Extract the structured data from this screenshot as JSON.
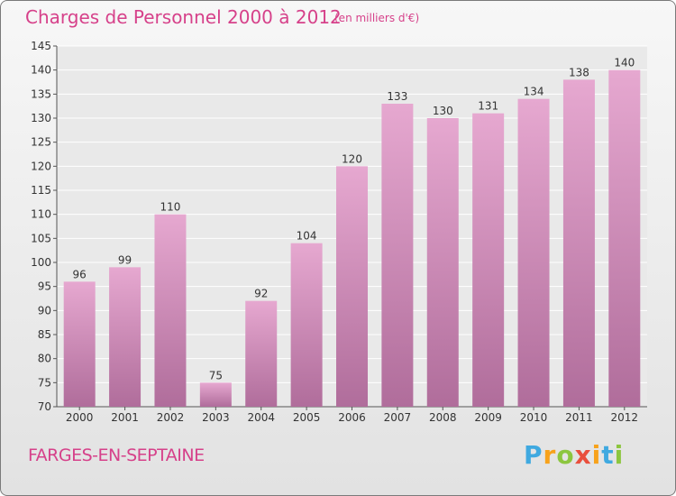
{
  "header": {
    "title": "Charges de Personnel 2000 à 2012",
    "subtitle": "(en milliers d'€)"
  },
  "footer": {
    "commune": "FARGES-EN-SEPTAINE",
    "logo": "Proxiti"
  },
  "colors": {
    "title": "#d6418a",
    "bar_top": "#e6a8d0",
    "bar_bottom": "#b06d9b"
  },
  "chart_data": {
    "type": "bar",
    "title": "Charges de Personnel 2000 à 2012",
    "categories": [
      "2000",
      "2001",
      "2002",
      "2003",
      "2004",
      "2005",
      "2006",
      "2007",
      "2008",
      "2009",
      "2010",
      "2011",
      "2012"
    ],
    "values": [
      96,
      99,
      110,
      75,
      92,
      104,
      120,
      133,
      130,
      131,
      134,
      138,
      140
    ],
    "ylim": [
      70,
      145
    ],
    "yticks": [
      70,
      75,
      80,
      85,
      90,
      95,
      100,
      105,
      110,
      115,
      120,
      125,
      130,
      135,
      140,
      145
    ],
    "grid": true,
    "data_labels": true
  }
}
